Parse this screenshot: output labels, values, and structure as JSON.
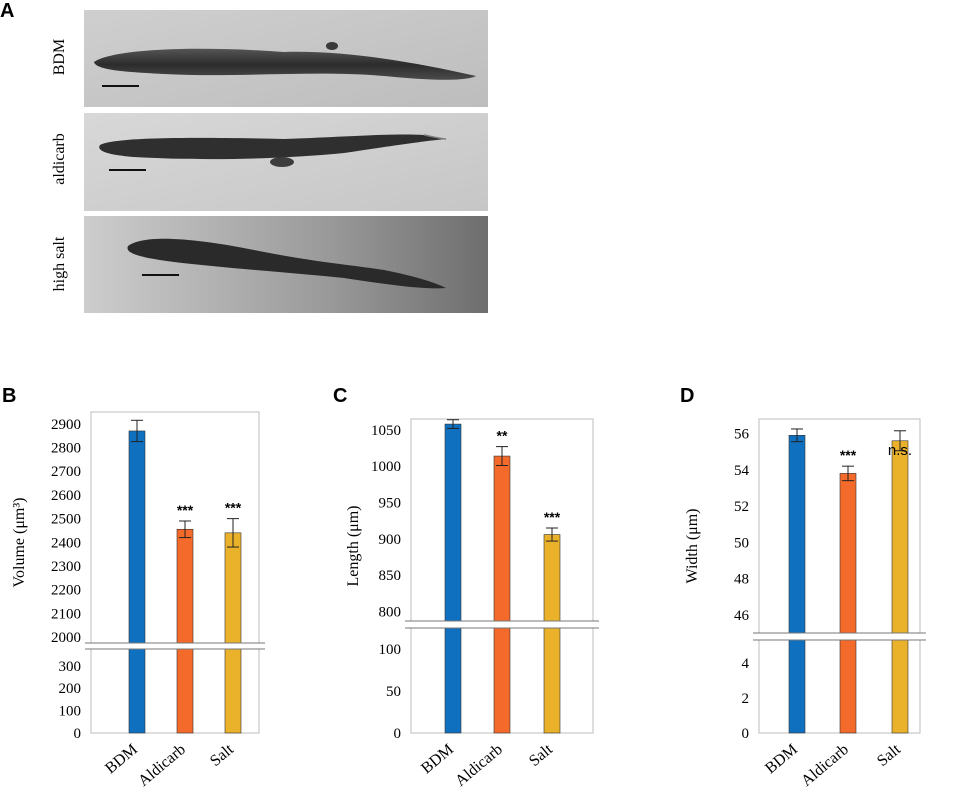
{
  "panels": {
    "a": "A",
    "b": "B",
    "c": "C",
    "d": "D"
  },
  "micrographs": {
    "rows": [
      {
        "label": "BDM"
      },
      {
        "label": "aldicarb"
      },
      {
        "label": "high salt"
      }
    ]
  },
  "colors": {
    "BDM": "#0f70c0",
    "Aldicarb": "#f46a2a",
    "Salt": "#eab12b"
  },
  "chart_data": [
    {
      "type": "bar",
      "panel": "B",
      "categories": [
        "BDM",
        "Aldicarb",
        "Salt"
      ],
      "values": [
        2870,
        2455,
        2440
      ],
      "errors": [
        45,
        35,
        60
      ],
      "significance": [
        "",
        "***",
        "***"
      ],
      "ylabel": "Volume (μm³)",
      "axis_break": true,
      "lower_ticks": [
        0,
        100,
        200,
        300
      ],
      "upper_ticks": [
        2000,
        2100,
        2200,
        2300,
        2400,
        2500,
        2600,
        2700,
        2800,
        2900
      ],
      "lower_range": [
        0,
        375
      ],
      "upper_range": [
        1975,
        2950
      ]
    },
    {
      "type": "bar",
      "panel": "C",
      "categories": [
        "BDM",
        "Aldicarb",
        "Salt"
      ],
      "values": [
        1058,
        1014,
        906
      ],
      "errors": [
        6,
        13,
        9
      ],
      "significance": [
        "",
        "**",
        "***"
      ],
      "ylabel": "Length (μm)",
      "axis_break": true,
      "lower_ticks": [
        0,
        50,
        100
      ],
      "upper_ticks": [
        800,
        850,
        900,
        950,
        1000,
        1050
      ],
      "lower_range": [
        0,
        125
      ],
      "upper_range": [
        787,
        1065
      ]
    },
    {
      "type": "bar",
      "panel": "D",
      "categories": [
        "BDM",
        "Aldicarb",
        "Salt"
      ],
      "values": [
        55.9,
        53.8,
        55.6
      ],
      "errors": [
        0.35,
        0.4,
        0.55
      ],
      "significance": [
        "",
        "***",
        "n.s."
      ],
      "ylabel": "Width (μm)",
      "axis_break": true,
      "lower_ticks": [
        0,
        2,
        4
      ],
      "upper_ticks": [
        46,
        48,
        50,
        52,
        54,
        56
      ],
      "lower_range": [
        0,
        5.3
      ],
      "upper_range": [
        45.0,
        56.8
      ]
    }
  ]
}
